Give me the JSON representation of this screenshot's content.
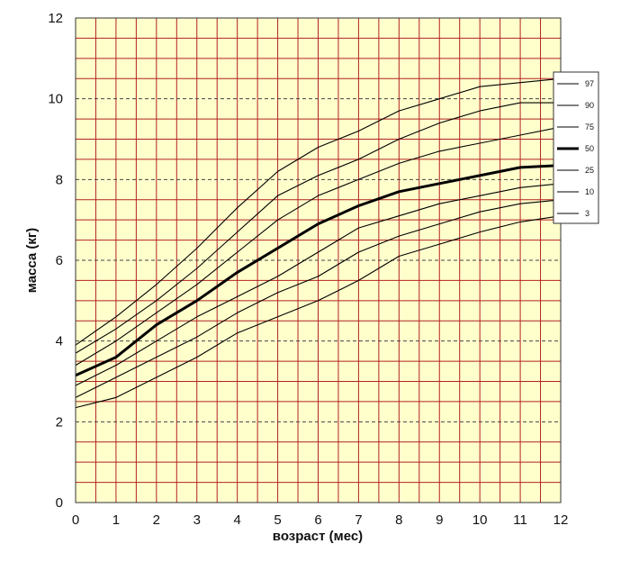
{
  "chart_data": {
    "type": "line",
    "xlabel": "возраст (мес)",
    "ylabel": "масса (кг)",
    "xlim": [
      0,
      12
    ],
    "ylim": [
      0,
      12
    ],
    "x_ticks": [
      "0",
      "1",
      "2",
      "3",
      "4",
      "5",
      "6",
      "7",
      "8",
      "9",
      "10",
      "11",
      "12"
    ],
    "y_ticks": [
      "0",
      "2",
      "4",
      "6",
      "8",
      "10",
      "12"
    ],
    "grid": true,
    "dashed_gridlines_y": [
      2,
      4,
      6,
      8,
      10
    ],
    "legend_position": "right",
    "plot_background": "#ffffcc",
    "grid_color": "#b22222",
    "x": [
      0,
      1,
      2,
      3,
      4,
      5,
      6,
      7,
      8,
      9,
      10,
      11,
      12
    ],
    "series": [
      {
        "name": "97",
        "values": [
          3.9,
          4.6,
          5.4,
          6.3,
          7.3,
          8.2,
          8.8,
          9.2,
          9.7,
          10.0,
          10.3,
          10.4,
          10.5
        ],
        "emphasis": false
      },
      {
        "name": "90",
        "values": [
          3.7,
          4.3,
          5.0,
          5.8,
          6.7,
          7.6,
          8.1,
          8.5,
          9.0,
          9.4,
          9.7,
          9.9,
          9.9
        ],
        "emphasis": false
      },
      {
        "name": "75",
        "values": [
          3.4,
          4.0,
          4.7,
          5.4,
          6.2,
          7.0,
          7.6,
          8.0,
          8.4,
          8.7,
          8.9,
          9.1,
          9.3
        ],
        "emphasis": false
      },
      {
        "name": "50",
        "values": [
          3.15,
          3.6,
          4.4,
          5.0,
          5.7,
          6.3,
          6.9,
          7.35,
          7.7,
          7.9,
          8.1,
          8.3,
          8.35
        ],
        "emphasis": true
      },
      {
        "name": "25",
        "values": [
          2.9,
          3.4,
          4.0,
          4.6,
          5.1,
          5.6,
          6.2,
          6.8,
          7.1,
          7.4,
          7.6,
          7.8,
          7.9
        ],
        "emphasis": false
      },
      {
        "name": "10",
        "values": [
          2.6,
          3.1,
          3.6,
          4.1,
          4.7,
          5.2,
          5.6,
          6.2,
          6.6,
          6.9,
          7.2,
          7.4,
          7.5
        ],
        "emphasis": false
      },
      {
        "name": "3",
        "values": [
          2.35,
          2.6,
          3.1,
          3.6,
          4.2,
          4.6,
          5.0,
          5.5,
          6.1,
          6.4,
          6.7,
          6.95,
          7.1
        ],
        "emphasis": false
      }
    ]
  }
}
